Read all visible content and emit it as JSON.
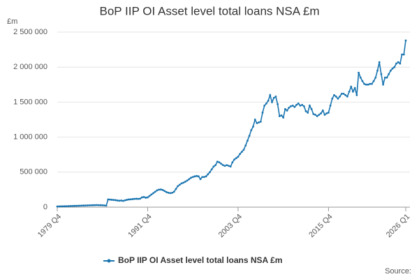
{
  "chart_data": {
    "type": "line",
    "title": "BoP IIP OI Asset level total loans NSA £m",
    "y_unit": "£m",
    "source": "Source:",
    "categories": [
      "1979 Q4",
      null,
      null,
      null,
      null,
      null,
      null,
      null,
      null,
      null,
      null,
      null,
      null,
      null,
      null,
      null,
      null,
      null,
      null,
      null,
      null,
      null,
      null,
      null,
      null,
      null,
      null,
      null,
      null,
      null,
      null,
      null,
      null,
      null,
      null,
      null,
      null,
      null,
      null,
      null,
      null,
      null,
      null,
      null,
      null,
      null,
      null,
      null,
      "1991 Q4",
      null,
      null,
      null,
      null,
      null,
      null,
      null,
      null,
      null,
      null,
      null,
      null,
      null,
      null,
      null,
      null,
      null,
      null,
      null,
      null,
      null,
      null,
      null,
      null,
      null,
      null,
      null,
      null,
      null,
      null,
      null,
      null,
      null,
      null,
      null,
      null,
      null,
      null,
      null,
      null,
      null,
      null,
      null,
      null,
      null,
      null,
      null,
      "2003 Q4",
      null,
      null,
      null,
      null,
      null,
      null,
      null,
      null,
      null,
      null,
      null,
      null,
      null,
      null,
      null,
      null,
      null,
      null,
      null,
      null,
      null,
      null,
      null,
      null,
      null,
      null,
      null,
      null,
      null,
      null,
      null,
      null,
      null,
      null,
      null,
      null,
      null,
      null,
      null,
      null,
      null,
      null,
      null,
      null,
      null,
      null,
      null,
      "2015 Q4",
      null,
      null,
      null,
      null,
      null,
      null,
      null,
      null,
      null,
      null,
      null,
      null,
      null,
      null,
      null,
      null,
      null,
      null,
      null,
      null,
      null,
      null,
      null,
      null,
      null,
      null,
      null,
      null,
      null,
      null,
      null,
      null,
      null,
      null,
      null,
      null,
      null,
      null,
      null,
      null,
      "2026 Q1"
    ],
    "series": [
      {
        "name": "BoP IIP OI Asset level total loans NSA £m",
        "color": "#1a75b0",
        "values": [
          10000,
          11000,
          12000,
          12000,
          13000,
          14000,
          15000,
          16000,
          17000,
          18000,
          19000,
          20000,
          21000,
          22000,
          23000,
          24000,
          25000,
          26000,
          27000,
          28000,
          29000,
          30000,
          29000,
          28000,
          27000,
          25000,
          22000,
          110000,
          108000,
          105000,
          103000,
          100000,
          95000,
          92000,
          95000,
          90000,
          98000,
          105000,
          110000,
          112000,
          115000,
          118000,
          120000,
          118000,
          122000,
          140000,
          145000,
          135000,
          140000,
          160000,
          180000,
          200000,
          220000,
          240000,
          250000,
          252000,
          245000,
          230000,
          215000,
          205000,
          200000,
          205000,
          220000,
          260000,
          300000,
          320000,
          340000,
          350000,
          365000,
          380000,
          400000,
          420000,
          430000,
          440000,
          445000,
          440000,
          400000,
          430000,
          430000,
          440000,
          470000,
          500000,
          540000,
          580000,
          600000,
          650000,
          640000,
          620000,
          600000,
          590000,
          600000,
          590000,
          580000,
          640000,
          680000,
          700000,
          720000,
          760000,
          790000,
          820000,
          880000,
          950000,
          1020000,
          1100000,
          1150000,
          1250000,
          1200000,
          1210000,
          1220000,
          1350000,
          1450000,
          1480000,
          1520000,
          1600000,
          1500000,
          1560000,
          1580000,
          1470000,
          1300000,
          1310000,
          1280000,
          1400000,
          1380000,
          1420000,
          1440000,
          1450000,
          1430000,
          1460000,
          1480000,
          1450000,
          1460000,
          1440000,
          1370000,
          1350000,
          1450000,
          1400000,
          1330000,
          1320000,
          1300000,
          1320000,
          1340000,
          1380000,
          1320000,
          1340000,
          1350000,
          1450000,
          1550000,
          1600000,
          1580000,
          1550000,
          1580000,
          1620000,
          1620000,
          1600000,
          1580000,
          1650000,
          1720000,
          1650000,
          1700000,
          1600000,
          1920000,
          1850000,
          1800000,
          1760000,
          1750000,
          1750000,
          1760000,
          1760000,
          1800000,
          1850000,
          1950000,
          2070000,
          1900000,
          1750000,
          1850000,
          1850000,
          1900000,
          1950000,
          1980000,
          2000000,
          2050000,
          2070000,
          2050000,
          2180000,
          2180000,
          2380000
        ]
      }
    ],
    "ylim": [
      0,
      2500000
    ],
    "yticks": [
      0,
      {
        "value": 500000,
        "label": "500 000"
      },
      {
        "value": 1000000,
        "label": "1 000 000"
      },
      {
        "value": 1500000,
        "label": "1 500 000"
      },
      {
        "value": 2000000,
        "label": "2 000 000"
      },
      {
        "value": 2500000,
        "label": "2 500 000"
      }
    ],
    "grid": true
  }
}
